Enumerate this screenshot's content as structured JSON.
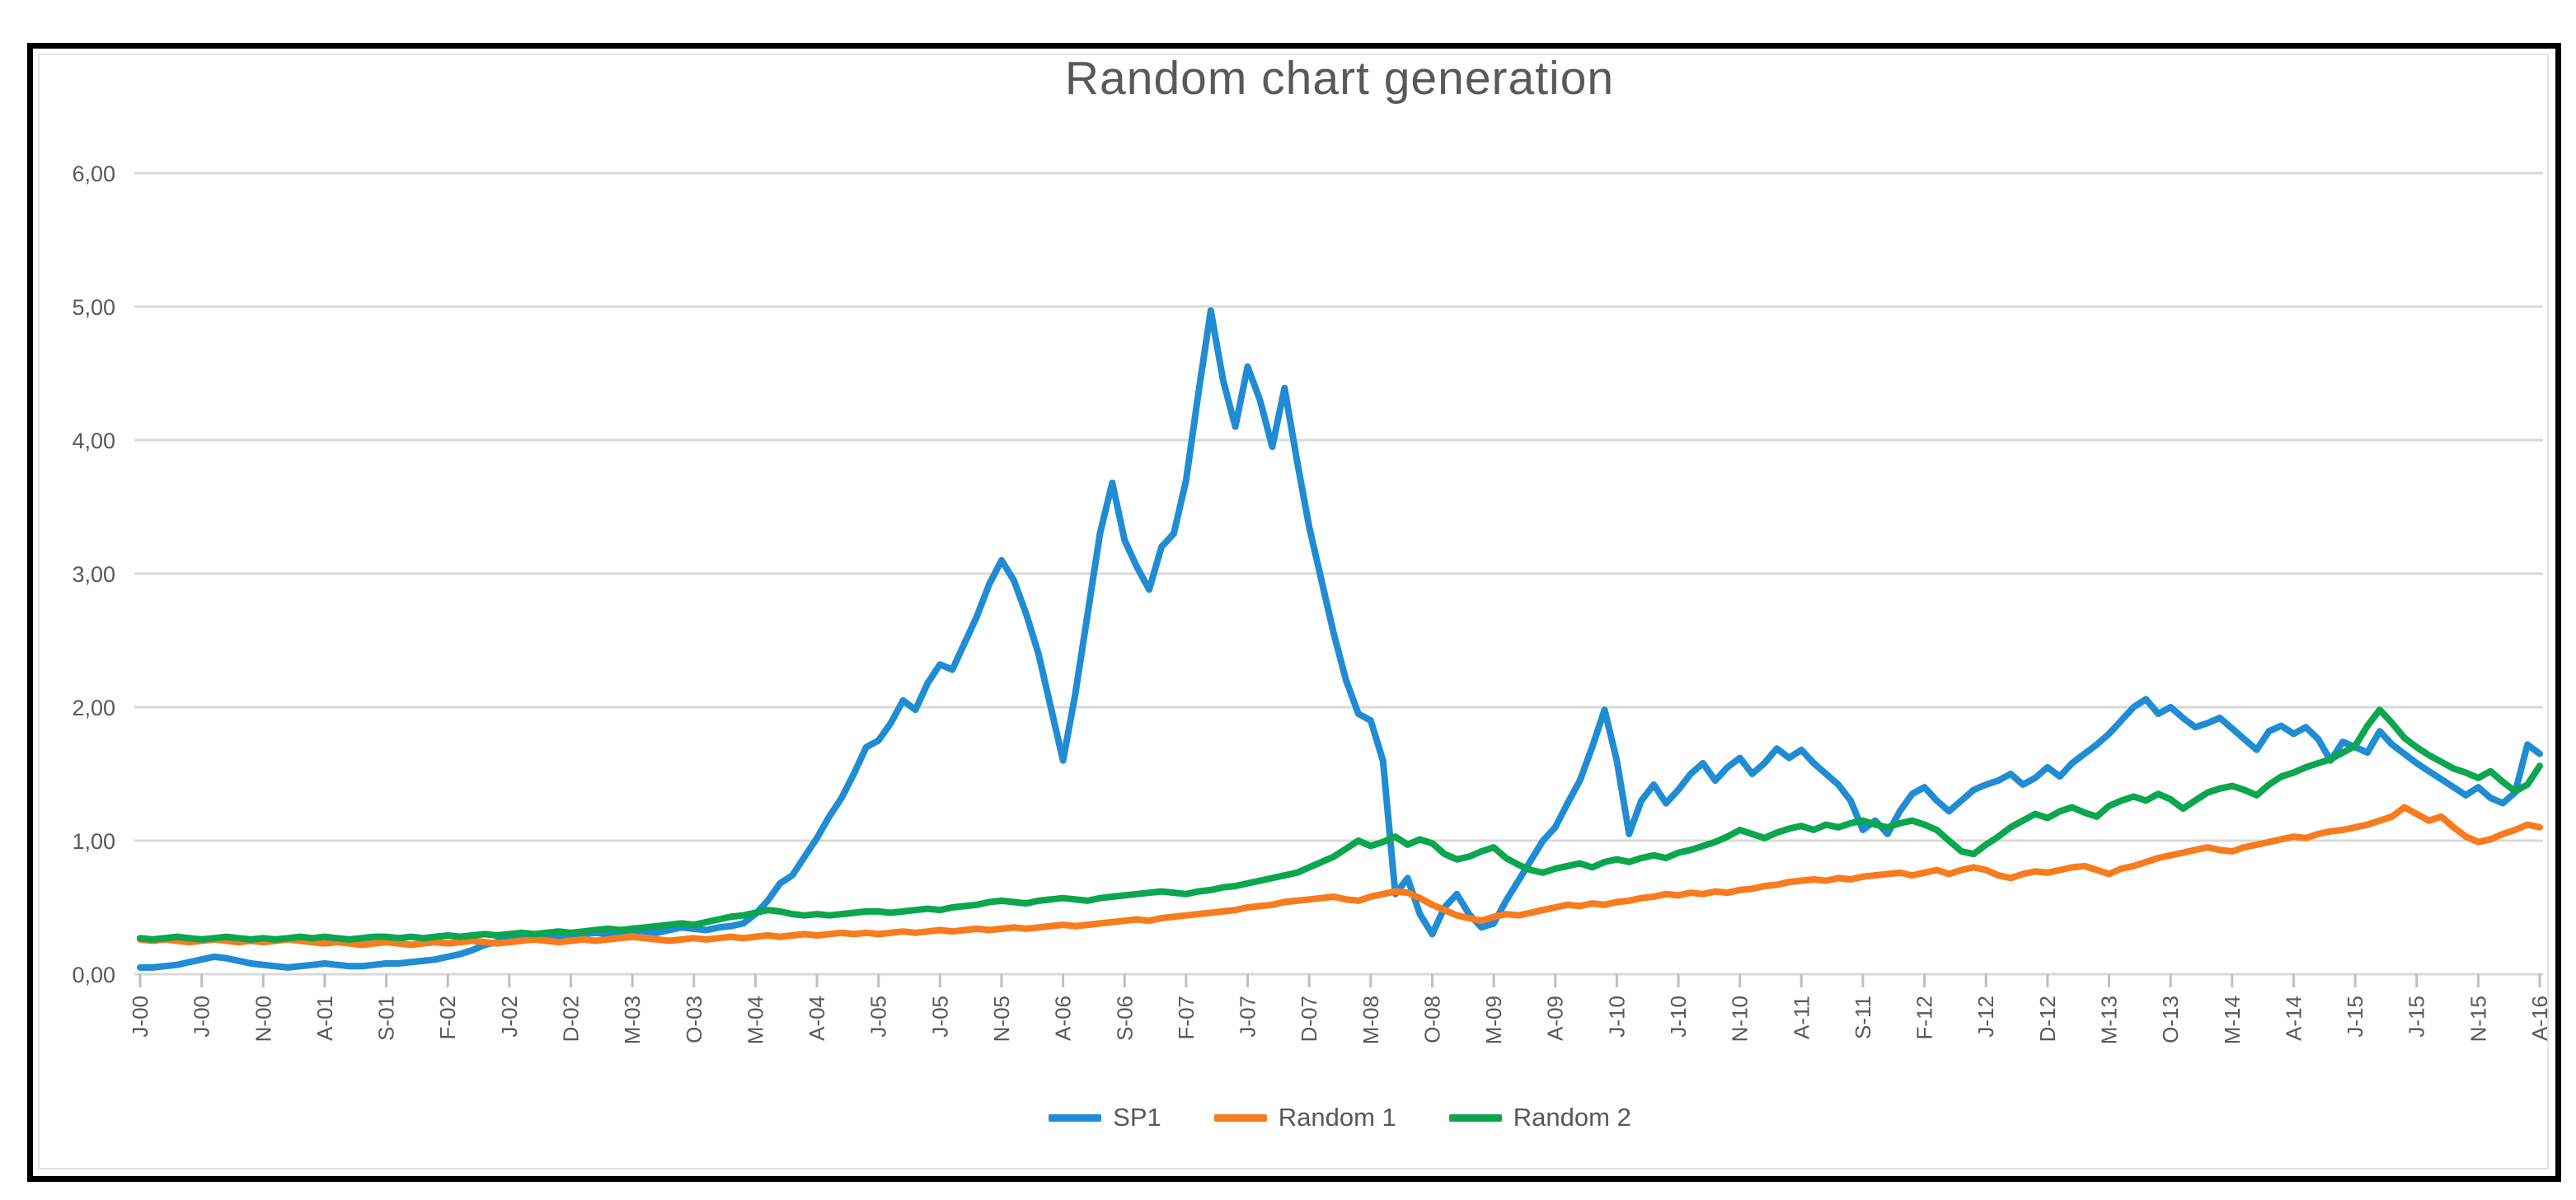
{
  "chart": {
    "title": "Random chart generation",
    "title_color": "#595959",
    "axis_text_color": "#595959",
    "gridline_color": "#d9d9d9",
    "tick_color": "#bfbfbf",
    "legend": {
      "position": "bottom",
      "items": [
        {
          "label": "SP1",
          "color": "#1f8cd3"
        },
        {
          "label": "Random 1",
          "color": "#f87b1e"
        },
        {
          "label": "Random 2",
          "color": "#0ba64e"
        }
      ]
    }
  },
  "chart_data": {
    "type": "line",
    "title": "Random chart generation",
    "xlabel": "",
    "ylabel": "",
    "ylim": [
      0,
      6
    ],
    "grid": "horizontal",
    "legend_position": "bottom",
    "y_tick_labels": [
      "6,00",
      "5,00",
      "4,00",
      "3,00",
      "2,00",
      "1,00",
      "0,00"
    ],
    "x_unit": "monthly points, Jan-2000 to Apr-2016 (196 points); axis labeled every 5 months",
    "x_tick_labels": [
      "J-00",
      "J-00",
      "N-00",
      "A-01",
      "S-01",
      "F-02",
      "J-02",
      "D-02",
      "M-03",
      "O-03",
      "M-04",
      "A-04",
      "J-05",
      "J-05",
      "N-05",
      "A-06",
      "S-06",
      "F-07",
      "J-07",
      "D-07",
      "M-08",
      "O-08",
      "M-09",
      "A-09",
      "J-10",
      "J-10",
      "N-10",
      "A-11",
      "S-11",
      "F-12",
      "J-12",
      "D-12",
      "M-13",
      "O-13",
      "M-14",
      "A-14",
      "J-15",
      "J-15",
      "N-15",
      "A-16"
    ],
    "x_label_rotation_deg": -90,
    "months_between_labels": 5,
    "series": [
      {
        "name": "SP1",
        "color": "#1f8cd3",
        "values": [
          0.05,
          0.05,
          0.06,
          0.07,
          0.09,
          0.11,
          0.13,
          0.12,
          0.1,
          0.08,
          0.07,
          0.06,
          0.05,
          0.06,
          0.07,
          0.08,
          0.07,
          0.06,
          0.06,
          0.07,
          0.08,
          0.08,
          0.09,
          0.1,
          0.11,
          0.13,
          0.15,
          0.18,
          0.22,
          0.24,
          0.26,
          0.27,
          0.26,
          0.28,
          0.27,
          0.29,
          0.3,
          0.31,
          0.3,
          0.32,
          0.33,
          0.32,
          0.31,
          0.33,
          0.35,
          0.34,
          0.33,
          0.35,
          0.36,
          0.38,
          0.45,
          0.55,
          0.68,
          0.74,
          0.88,
          1.02,
          1.18,
          1.32,
          1.5,
          1.7,
          1.75,
          1.88,
          2.05,
          1.98,
          2.18,
          2.32,
          2.28,
          2.48,
          2.68,
          2.92,
          3.1,
          2.95,
          2.7,
          2.4,
          2.0,
          1.6,
          2.1,
          2.7,
          3.3,
          3.68,
          3.25,
          3.05,
          2.88,
          3.2,
          3.3,
          3.7,
          4.35,
          4.97,
          4.45,
          4.1,
          4.55,
          4.3,
          3.95,
          4.39,
          3.85,
          3.35,
          2.95,
          2.55,
          2.2,
          1.95,
          1.9,
          1.6,
          0.6,
          0.72,
          0.45,
          0.3,
          0.5,
          0.6,
          0.45,
          0.35,
          0.38,
          0.55,
          0.7,
          0.85,
          1.0,
          1.1,
          1.28,
          1.45,
          1.7,
          1.98,
          1.6,
          1.05,
          1.3,
          1.42,
          1.28,
          1.38,
          1.5,
          1.58,
          1.45,
          1.55,
          1.62,
          1.5,
          1.58,
          1.69,
          1.62,
          1.68,
          1.58,
          1.5,
          1.42,
          1.3,
          1.08,
          1.15,
          1.05,
          1.22,
          1.35,
          1.4,
          1.3,
          1.22,
          1.3,
          1.38,
          1.42,
          1.45,
          1.5,
          1.42,
          1.47,
          1.55,
          1.48,
          1.58,
          1.65,
          1.72,
          1.8,
          1.9,
          2.0,
          2.06,
          1.95,
          2.0,
          1.92,
          1.85,
          1.88,
          1.92,
          1.84,
          1.76,
          1.68,
          1.82,
          1.86,
          1.8,
          1.85,
          1.76,
          1.6,
          1.74,
          1.7,
          1.66,
          1.82,
          1.72,
          1.65,
          1.58,
          1.52,
          1.46,
          1.4,
          1.34,
          1.4,
          1.32,
          1.28,
          1.36,
          1.72,
          1.65
        ]
      },
      {
        "name": "Random 1",
        "color": "#f87b1e",
        "values": [
          0.26,
          0.25,
          0.26,
          0.25,
          0.24,
          0.25,
          0.26,
          0.25,
          0.24,
          0.25,
          0.24,
          0.25,
          0.26,
          0.25,
          0.24,
          0.23,
          0.24,
          0.23,
          0.22,
          0.23,
          0.24,
          0.23,
          0.22,
          0.23,
          0.24,
          0.23,
          0.24,
          0.25,
          0.24,
          0.23,
          0.24,
          0.25,
          0.26,
          0.25,
          0.24,
          0.25,
          0.26,
          0.25,
          0.26,
          0.27,
          0.28,
          0.27,
          0.26,
          0.25,
          0.26,
          0.27,
          0.26,
          0.27,
          0.28,
          0.27,
          0.28,
          0.29,
          0.28,
          0.29,
          0.3,
          0.29,
          0.3,
          0.31,
          0.3,
          0.31,
          0.3,
          0.31,
          0.32,
          0.31,
          0.32,
          0.33,
          0.32,
          0.33,
          0.34,
          0.33,
          0.34,
          0.35,
          0.34,
          0.35,
          0.36,
          0.37,
          0.36,
          0.37,
          0.38,
          0.39,
          0.4,
          0.41,
          0.4,
          0.42,
          0.43,
          0.44,
          0.45,
          0.46,
          0.47,
          0.48,
          0.5,
          0.51,
          0.52,
          0.54,
          0.55,
          0.56,
          0.57,
          0.58,
          0.56,
          0.55,
          0.58,
          0.6,
          0.62,
          0.61,
          0.57,
          0.52,
          0.48,
          0.44,
          0.42,
          0.4,
          0.43,
          0.45,
          0.44,
          0.46,
          0.48,
          0.5,
          0.52,
          0.51,
          0.53,
          0.52,
          0.54,
          0.55,
          0.57,
          0.58,
          0.6,
          0.59,
          0.61,
          0.6,
          0.62,
          0.61,
          0.63,
          0.64,
          0.66,
          0.67,
          0.69,
          0.7,
          0.71,
          0.7,
          0.72,
          0.71,
          0.73,
          0.74,
          0.75,
          0.76,
          0.74,
          0.76,
          0.78,
          0.75,
          0.78,
          0.8,
          0.78,
          0.74,
          0.72,
          0.75,
          0.77,
          0.76,
          0.78,
          0.8,
          0.81,
          0.78,
          0.75,
          0.79,
          0.81,
          0.84,
          0.87,
          0.89,
          0.91,
          0.93,
          0.95,
          0.93,
          0.92,
          0.95,
          0.97,
          0.99,
          1.01,
          1.03,
          1.02,
          1.05,
          1.07,
          1.08,
          1.1,
          1.12,
          1.15,
          1.18,
          1.25,
          1.2,
          1.15,
          1.18,
          1.1,
          1.03,
          0.99,
          1.01,
          1.05,
          1.08,
          1.12,
          1.1
        ]
      },
      {
        "name": "Random 2",
        "color": "#0ba64e",
        "values": [
          0.27,
          0.26,
          0.27,
          0.28,
          0.27,
          0.26,
          0.27,
          0.28,
          0.27,
          0.26,
          0.27,
          0.26,
          0.27,
          0.28,
          0.27,
          0.28,
          0.27,
          0.26,
          0.27,
          0.28,
          0.28,
          0.27,
          0.28,
          0.27,
          0.28,
          0.29,
          0.28,
          0.29,
          0.3,
          0.29,
          0.3,
          0.31,
          0.3,
          0.31,
          0.32,
          0.31,
          0.32,
          0.33,
          0.34,
          0.33,
          0.34,
          0.35,
          0.36,
          0.37,
          0.38,
          0.37,
          0.39,
          0.41,
          0.43,
          0.44,
          0.46,
          0.48,
          0.47,
          0.45,
          0.44,
          0.45,
          0.44,
          0.45,
          0.46,
          0.47,
          0.47,
          0.46,
          0.47,
          0.48,
          0.49,
          0.48,
          0.5,
          0.51,
          0.52,
          0.54,
          0.55,
          0.54,
          0.53,
          0.55,
          0.56,
          0.57,
          0.56,
          0.55,
          0.57,
          0.58,
          0.59,
          0.6,
          0.61,
          0.62,
          0.61,
          0.6,
          0.62,
          0.63,
          0.65,
          0.66,
          0.68,
          0.7,
          0.72,
          0.74,
          0.76,
          0.8,
          0.84,
          0.88,
          0.94,
          1.0,
          0.96,
          0.99,
          1.03,
          0.97,
          1.01,
          0.98,
          0.9,
          0.86,
          0.88,
          0.92,
          0.95,
          0.87,
          0.82,
          0.78,
          0.76,
          0.79,
          0.81,
          0.83,
          0.8,
          0.84,
          0.86,
          0.84,
          0.87,
          0.89,
          0.87,
          0.91,
          0.93,
          0.96,
          0.99,
          1.03,
          1.08,
          1.05,
          1.02,
          1.06,
          1.09,
          1.11,
          1.08,
          1.12,
          1.1,
          1.13,
          1.15,
          1.12,
          1.1,
          1.13,
          1.15,
          1.12,
          1.08,
          1.0,
          0.92,
          0.9,
          0.97,
          1.03,
          1.1,
          1.15,
          1.2,
          1.17,
          1.22,
          1.25,
          1.21,
          1.18,
          1.26,
          1.3,
          1.33,
          1.3,
          1.35,
          1.31,
          1.24,
          1.3,
          1.36,
          1.39,
          1.41,
          1.38,
          1.34,
          1.42,
          1.48,
          1.51,
          1.55,
          1.58,
          1.61,
          1.66,
          1.71,
          1.86,
          1.98,
          1.88,
          1.77,
          1.7,
          1.64,
          1.59,
          1.54,
          1.51,
          1.47,
          1.52,
          1.44,
          1.37,
          1.42,
          1.56
        ]
      }
    ]
  }
}
